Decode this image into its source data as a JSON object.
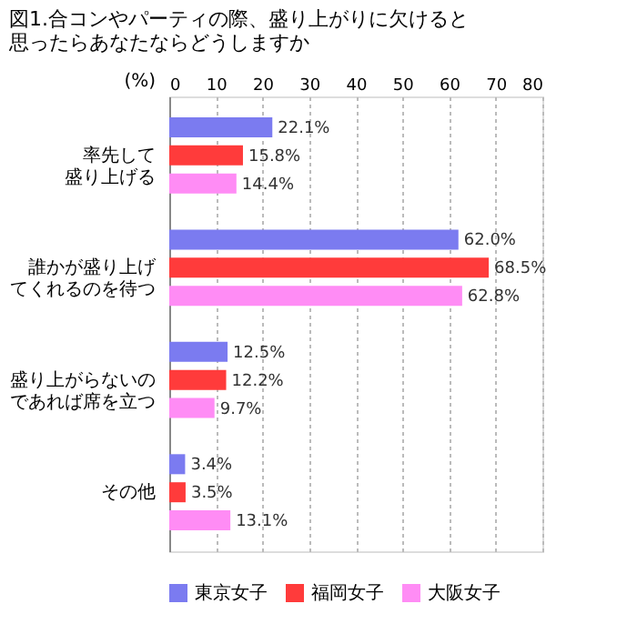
{
  "chart_data": {
    "type": "bar",
    "orientation": "horizontal",
    "title": "図1.合コンやパーティの際、盛り上がりに欠けると思ったらあなたならどうしますか",
    "xlabel": "(%)",
    "categories": [
      "率先して盛り上げる",
      "誰かが盛り上げてくれるのを待つ",
      "盛り上がらないのであれば席を立つ",
      "その他"
    ],
    "series": [
      {
        "name": "東京女子",
        "color": "#7b7bf0",
        "values": [
          22.1,
          62.0,
          12.5,
          3.4
        ],
        "value_labels": [
          "22.1%",
          "62.0%",
          "12.5%",
          "3.4%"
        ]
      },
      {
        "name": "福岡女子",
        "color": "#ff3b3b",
        "values": [
          15.8,
          68.5,
          12.2,
          3.5
        ],
        "value_labels": [
          "15.8%",
          "68.5%",
          "12.2%",
          "3.5%"
        ]
      },
      {
        "name": "大阪女子",
        "color": "#ff8cf5",
        "values": [
          14.4,
          62.8,
          9.7,
          13.1
        ],
        "value_labels": [
          "14.4%",
          "62.8%",
          "9.7%",
          "13.1%"
        ]
      }
    ],
    "xlim": [
      0,
      80
    ],
    "xticks": [
      0,
      10,
      20,
      30,
      40,
      50,
      60,
      70,
      80
    ],
    "grid": "x",
    "legend": "bottom"
  }
}
